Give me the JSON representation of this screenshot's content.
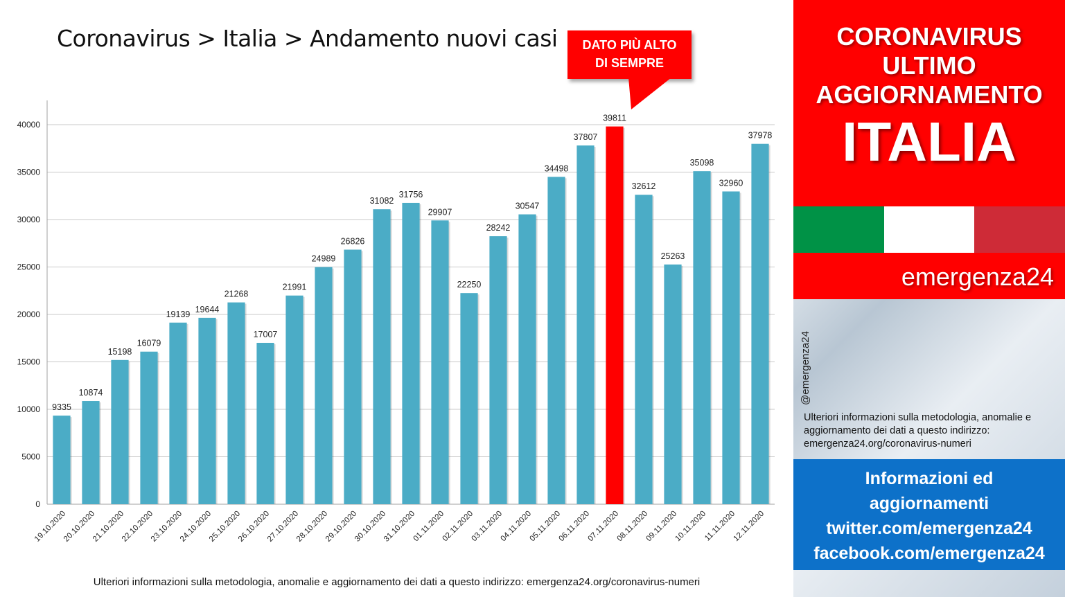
{
  "title": "Coronavirus > Italia > Andamento nuovi casi",
  "callout": {
    "line1": "DATO PIÙ ALTO",
    "line2": "DI SEMPRE"
  },
  "footer_note": "Ulteriori informazioni sulla metodologia, anomalie e aggiornamento dei dati a questo indirizzo: emergenza24.org/coronavirus-numeri",
  "sidebar": {
    "header": [
      "CORONAVIRUS",
      "ULTIMO",
      "AGGIORNAMENTO"
    ],
    "country": "ITALIA",
    "flag_colors": [
      "#009246",
      "#ffffff",
      "#ce2b37"
    ],
    "brand": "emergenza24",
    "handle": "@emergenza24",
    "note": "Ulteriori informazioni sulla metodologia, anomalie e aggiornamento dei dati a questo indirizzo: emergenza24.org/coronavirus-numeri",
    "social": [
      "Informazioni ed",
      "aggiornamenti",
      "twitter.com/emergenza24",
      "facebook.com/emergenza24"
    ]
  },
  "colors": {
    "bar": "#4bacc6",
    "highlight": "#ff0000",
    "accent_red": "#ff0000",
    "social_blue": "#0d71c9"
  },
  "chart_data": {
    "type": "bar",
    "categories": [
      "19.10.2020",
      "20.10.2020",
      "21.10.2020",
      "22.10.2020",
      "23.10.2020",
      "24.10.2020",
      "25.10.2020",
      "26.10.2020",
      "27.10.2020",
      "28.10.2020",
      "29.10.2020",
      "30.10.2020",
      "31.10.2020",
      "01.11.2020",
      "02.11.2020",
      "03.11.2020",
      "04.11.2020",
      "05.11.2020",
      "06.11.2020",
      "07.11.2020",
      "08.11.2020",
      "09.11.2020",
      "10.11.2020",
      "11.11.2020",
      "12.11.2020"
    ],
    "values": [
      9335,
      10874,
      15198,
      16079,
      19139,
      19644,
      21268,
      17007,
      21991,
      24989,
      26826,
      31082,
      31756,
      29907,
      22250,
      28242,
      30547,
      34498,
      37807,
      39811,
      32612,
      25263,
      35098,
      32960,
      37978
    ],
    "highlight_index": 19,
    "ylim": [
      0,
      40000
    ],
    "yticks": [
      0,
      5000,
      10000,
      15000,
      20000,
      25000,
      30000,
      35000,
      40000
    ],
    "grid": true,
    "xlabel": "",
    "ylabel": ""
  }
}
